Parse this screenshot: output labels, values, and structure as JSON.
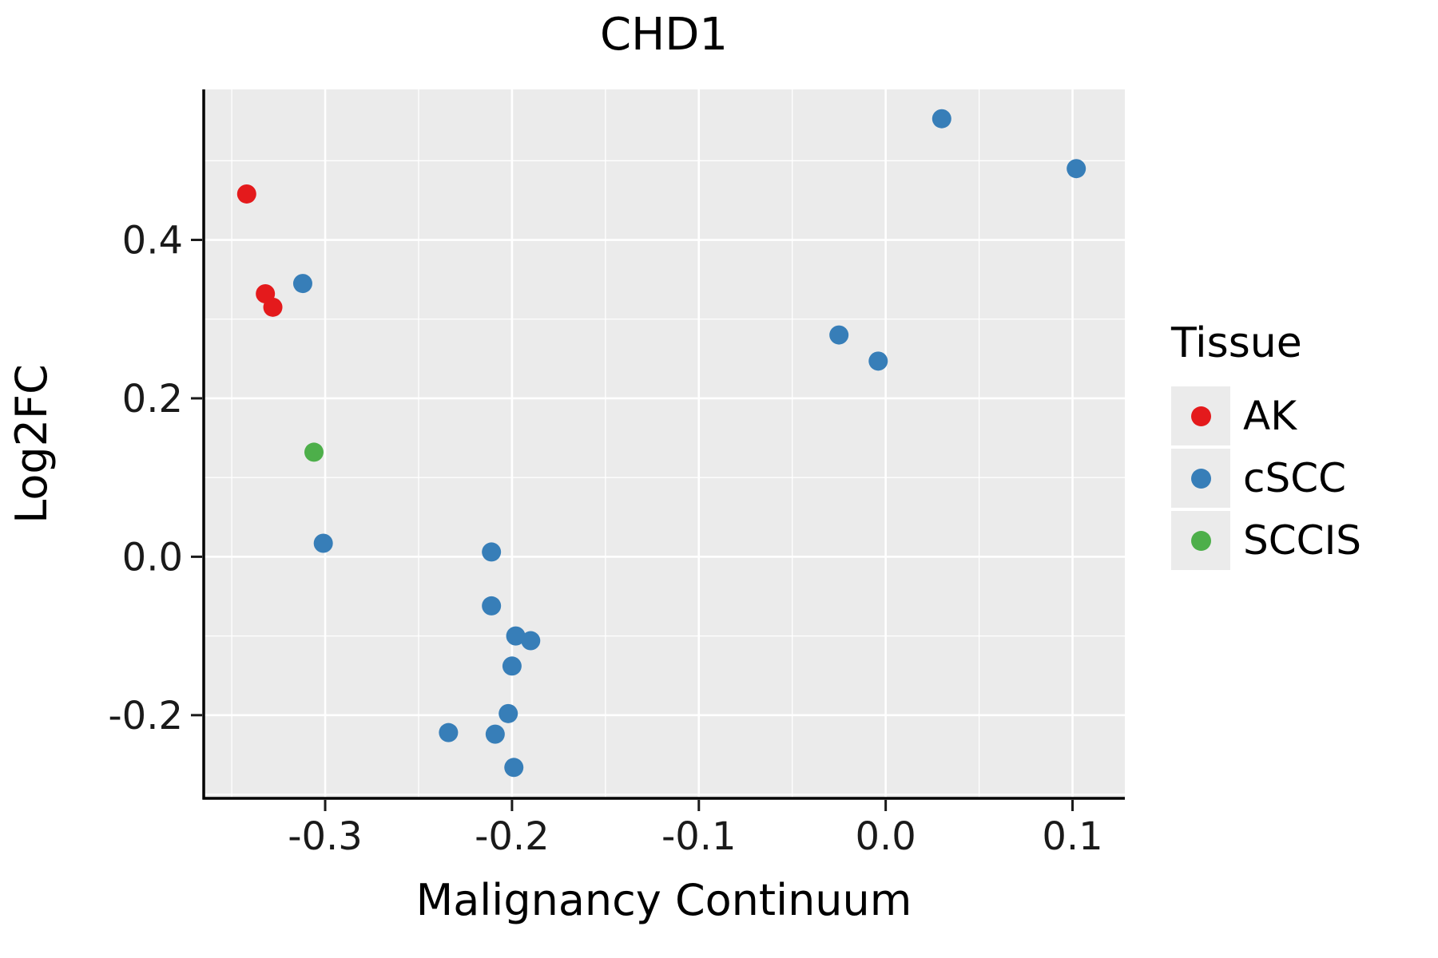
{
  "chart_data": {
    "type": "scatter",
    "title": "CHD1",
    "xlabel": "Malignancy Continuum",
    "ylabel": "Log2FC",
    "xlim": [
      -0.365,
      0.128
    ],
    "ylim": [
      -0.305,
      0.59
    ],
    "x_ticks": [
      -0.3,
      -0.2,
      -0.1,
      0.0,
      0.1
    ],
    "x_tick_labels": [
      "-0.3",
      "-0.2",
      "-0.1",
      "0.0",
      "0.1"
    ],
    "y_ticks": [
      -0.2,
      0.0,
      0.2,
      0.4
    ],
    "y_tick_labels": [
      "-0.2",
      "0.0",
      "0.2",
      "0.4"
    ],
    "grid": true,
    "panel_color": "#EBEBEB",
    "grid_color": "#FFFFFF",
    "legend": {
      "title": "Tissue",
      "position": "right",
      "key_fill": "#EBEBEB"
    },
    "series": [
      {
        "name": "AK",
        "color": "#E41A1C",
        "points": [
          [
            -0.342,
            0.458
          ],
          [
            -0.332,
            0.332
          ],
          [
            -0.328,
            0.315
          ]
        ]
      },
      {
        "name": "cSCC",
        "color": "#377EB8",
        "points": [
          [
            -0.312,
            0.345
          ],
          [
            0.03,
            0.553
          ],
          [
            0.102,
            0.49
          ],
          [
            -0.025,
            0.28
          ],
          [
            -0.004,
            0.247
          ],
          [
            -0.301,
            0.017
          ],
          [
            -0.211,
            0.006
          ],
          [
            -0.211,
            -0.062
          ],
          [
            -0.198,
            -0.1
          ],
          [
            -0.19,
            -0.106
          ],
          [
            -0.2,
            -0.138
          ],
          [
            -0.202,
            -0.198
          ],
          [
            -0.234,
            -0.222
          ],
          [
            -0.209,
            -0.224
          ],
          [
            -0.199,
            -0.266
          ]
        ]
      },
      {
        "name": "SCCIS",
        "color": "#4DAF4A",
        "points": [
          [
            -0.306,
            0.132
          ]
        ]
      }
    ]
  }
}
